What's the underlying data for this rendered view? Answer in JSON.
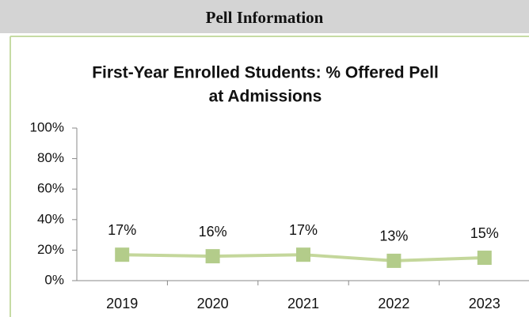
{
  "header": {
    "title": "Pell Information"
  },
  "chart_data": {
    "type": "line",
    "title": [
      "First-Year Enrolled Students: % Offered Pell",
      "at Admissions"
    ],
    "categories": [
      "2019",
      "2020",
      "2021",
      "2022",
      "2023"
    ],
    "series": [
      {
        "name": "% Offered Pell",
        "color": "#c4d79b",
        "values": [
          17,
          16,
          17,
          13,
          15
        ],
        "value_labels": [
          "17%",
          "16%",
          "17%",
          "13%",
          "15%"
        ]
      }
    ],
    "ylim": [
      0,
      100
    ],
    "yticks": [
      {
        "value": 0,
        "label": "0%"
      },
      {
        "value": 20,
        "label": "20%"
      },
      {
        "value": 40,
        "label": "40%"
      },
      {
        "value": 60,
        "label": "60%"
      },
      {
        "value": 80,
        "label": "80%"
      },
      {
        "value": 100,
        "label": "100%"
      }
    ],
    "grid": false,
    "legend": false
  }
}
